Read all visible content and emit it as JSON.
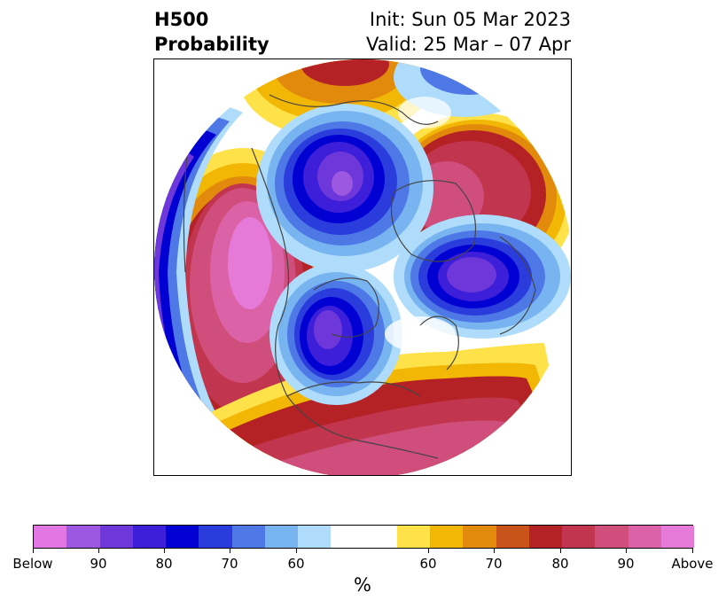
{
  "title": {
    "variable": "H500",
    "product": "Probability",
    "init": "Init: Sun 05 Mar 2023",
    "valid": "Valid: 25 Mar – 07 Apr"
  },
  "map": {
    "projection": "polar-stereographic-north-pacific-north-america",
    "anomalies": [
      {
        "region": "Northeast Pacific / off West Coast",
        "sign": "above",
        "max_prob": "Above"
      },
      {
        "region": "Alaska / Bering",
        "sign": "above",
        "max_prob": 70
      },
      {
        "region": "Eastern Siberia / Laptev",
        "sign": "below",
        "max_prob": 90
      },
      {
        "region": "Arctic / Greenland",
        "sign": "above",
        "max_prob": 90
      },
      {
        "region": "Scandinavia / Barents",
        "sign": "below",
        "max_prob": 90
      },
      {
        "region": "Hudson Bay / Canada",
        "sign": "below",
        "max_prob": 90
      },
      {
        "region": "Southern US / Atlantic",
        "sign": "above",
        "max_prob": 90
      }
    ]
  },
  "colorbar": {
    "unit_label": "%",
    "colors": [
      "#e277e3",
      "#9c58e0",
      "#6e37d9",
      "#3d1fd9",
      "#0000d2",
      "#2a3ddc",
      "#4d78e6",
      "#78b4f0",
      "#aedcfa",
      "#ffffff",
      "#ffe14a",
      "#f2b705",
      "#e28a0c",
      "#c9531a",
      "#b52226",
      "#c2354e",
      "#cf4e7c",
      "#dc62a8",
      "#e57ad8"
    ],
    "tick_labels": [
      "Below",
      "90",
      "80",
      "70",
      "60",
      "60",
      "70",
      "80",
      "90",
      "Above"
    ]
  }
}
